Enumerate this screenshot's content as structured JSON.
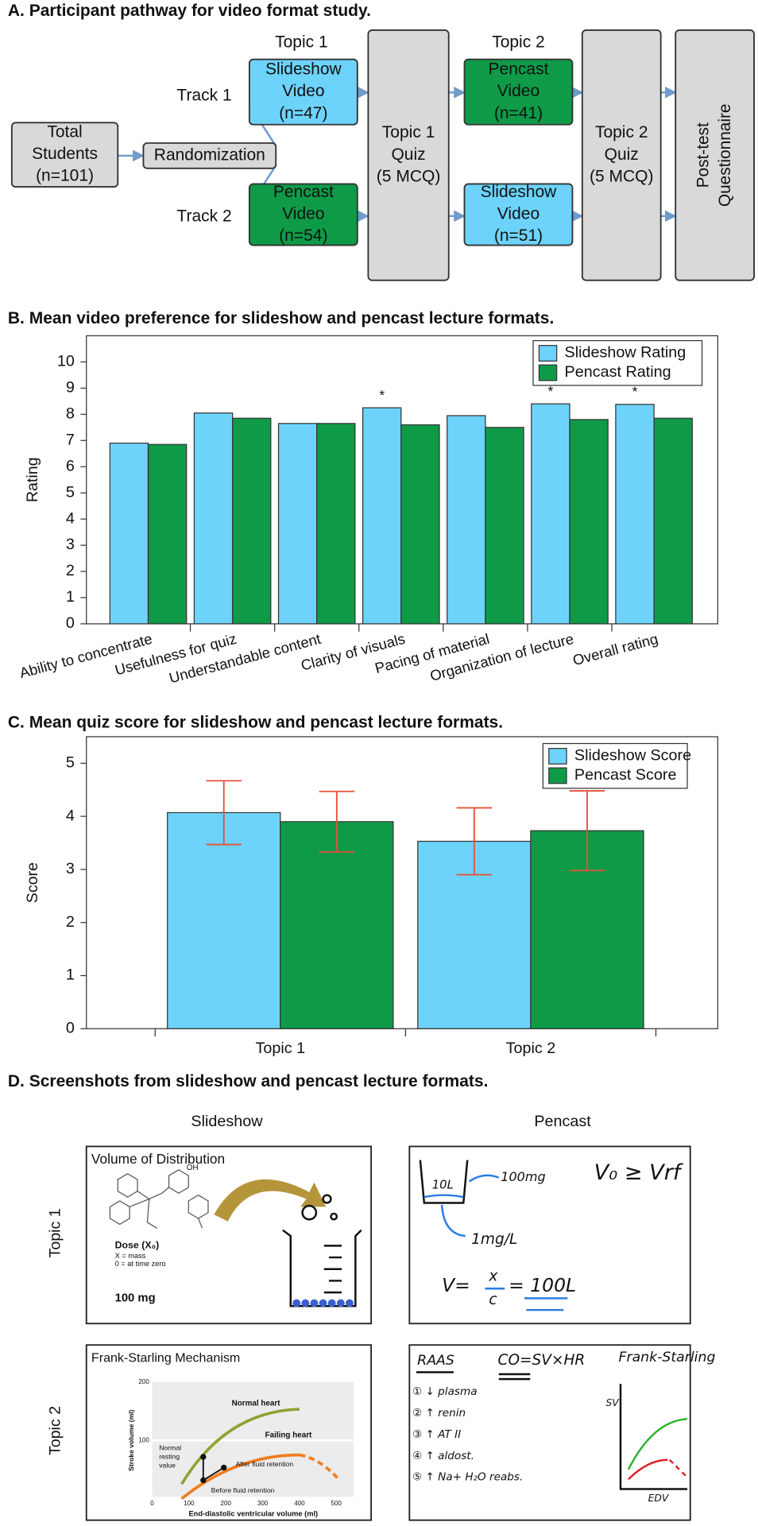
{
  "panel_a": {
    "title": "A. Participant pathway for video format study.",
    "headers": [
      "Topic 1",
      "Topic 2"
    ],
    "tracks": [
      "Track 1",
      "Track 2"
    ],
    "nodes": [
      {
        "lines": [
          "Total",
          "Students",
          "(n=101)"
        ],
        "color": "#d9d9d9"
      },
      {
        "lines": [
          "Randomization"
        ],
        "color": "#d9d9d9"
      },
      {
        "lines": [
          "Slideshow",
          "Video",
          "(n=47)"
        ],
        "color": "#6dd3fb"
      },
      {
        "lines": [
          "Pencast",
          "Video",
          "(n=54)"
        ],
        "color": "#0f9a48"
      },
      {
        "lines": [
          "Topic 1",
          "Quiz",
          "(5 MCQ)"
        ],
        "color": "#d9d9d9"
      },
      {
        "lines": [
          "Pencast",
          "Video",
          "(n=41)"
        ],
        "color": "#0f9a48"
      },
      {
        "lines": [
          "Slideshow",
          "Video",
          "(n=51)"
        ],
        "color": "#6dd3fb"
      },
      {
        "lines": [
          "Topic 2",
          "Quiz",
          "(5 MCQ)"
        ],
        "color": "#d9d9d9"
      },
      {
        "lines": [
          "Post-test",
          "Questionnaire"
        ],
        "color": "#d9d9d9"
      }
    ]
  },
  "chart_data": [
    {
      "type": "bar",
      "title": "B. Mean video preference for slideshow and pencast lecture formats.",
      "y_label": "Rating",
      "categories": [
        "Ability to concentrate",
        "Usefulness for quiz",
        "Understandable content",
        "Clarity of visuals",
        "Pacing of material",
        "Organization of lecture",
        "Overall rating"
      ],
      "series": [
        {
          "name": "Slideshow Rating",
          "color": "#6dd3fb",
          "values": [
            6.9,
            8.05,
            7.65,
            8.25,
            7.95,
            8.4,
            8.38
          ]
        },
        {
          "name": "Pencast Rating",
          "color": "#0f9a48",
          "values": [
            6.85,
            7.85,
            7.65,
            7.6,
            7.5,
            7.8,
            7.85
          ]
        }
      ],
      "significance": [
        null,
        null,
        null,
        "*",
        null,
        "*",
        "*"
      ],
      "ylim": [
        0,
        11
      ],
      "yticks": [
        0,
        1,
        2,
        3,
        4,
        5,
        6,
        7,
        8,
        9,
        10
      ],
      "grid": false,
      "legend": "upper right"
    },
    {
      "type": "bar",
      "title": "C. Mean quiz score for slideshow and pencast lecture formats.",
      "y_label": "Score",
      "categories": [
        "Topic 1",
        "Topic 2"
      ],
      "series": [
        {
          "name": "Slideshow Score",
          "color": "#6dd3fb",
          "values": [
            4.07,
            3.53
          ],
          "errors": [
            0.6,
            0.63
          ]
        },
        {
          "name": "Pencast Score",
          "color": "#0f9a48",
          "values": [
            3.9,
            3.73
          ],
          "errors": [
            0.57,
            0.75
          ]
        }
      ],
      "error_color": "#e8503a",
      "ylim": [
        0,
        5.5
      ],
      "yticks": [
        0,
        1,
        2,
        3,
        4,
        5
      ],
      "grid": false,
      "legend": "upper right"
    }
  ],
  "panel_d": {
    "title": "D. Screenshots from slideshow and pencast lecture formats.",
    "columns": [
      "Slideshow",
      "Pencast"
    ],
    "rows": [
      "Topic 1",
      "Topic 2"
    ],
    "slideshow_1": {
      "heading": "Volume of Distribution",
      "dose": "Dose (X₀)",
      "note1": "X = mass",
      "note2": "0 = at time zero",
      "amount": "100 mg",
      "oh": "OH"
    },
    "pencast_1": {
      "volume": "10L",
      "mass": "100mg",
      "conc": "1mg/L",
      "v": "V=",
      "num": "x",
      "den": "c",
      "result": "= 100L",
      "rule": "V₀ ≥ Vrf"
    },
    "slideshow_2": {
      "heading": "Frank-Starling Mechanism",
      "normal": "Normal heart",
      "failing": "Failing heart",
      "y_axis": "Stroke volume (ml)",
      "x_axis": "End-diastolic ventricular volume (ml)",
      "resting": [
        "Normal",
        "resting",
        "value"
      ],
      "after": "After fluid retention",
      "before": "Before fluid retention",
      "yticks": [
        "200",
        "100"
      ],
      "xticks": [
        "0",
        "100",
        "200",
        "300",
        "400",
        "500"
      ]
    },
    "pencast_2": {
      "raas": "RAAS",
      "co": "CO=SV×HR",
      "fs": "Frank-Starling",
      "steps": [
        "① ↓ plasma",
        "② ↑ renin",
        "③ ↑ AT II",
        "④ ↑ aldost.",
        "⑤ ↑ Na+ H₂O reabs."
      ],
      "sv": "SV",
      "edv": "EDV"
    }
  }
}
